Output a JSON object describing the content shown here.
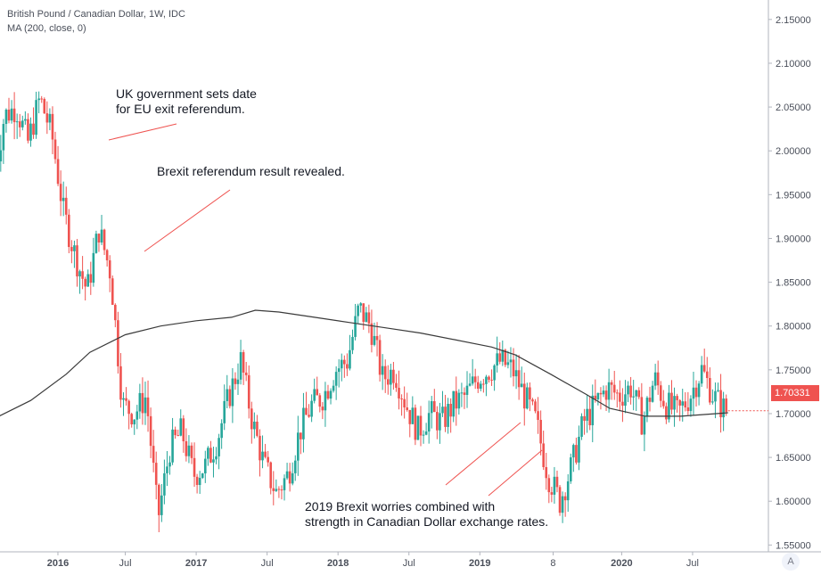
{
  "header": {
    "title": "British Pound / Canadian Dollar, 1W, IDC",
    "indicator": "MA (200, close, 0)"
  },
  "annotations": [
    {
      "text": "UK government sets date\nfor EU exit referendum."
    },
    {
      "text": "Brexit referendum result revealed."
    },
    {
      "text": "2019 Brexit worries combined with\nstrength in Canadian Dollar exchange rates."
    }
  ],
  "last_price": "1.70331",
  "auto_button": "A",
  "colors": {
    "up": "#26a69a",
    "down": "#ef5350",
    "ma": "#3a3a3a",
    "annotation_line": "#ef5350",
    "axis_text": "#4a4f5a"
  },
  "chart_data": {
    "type": "candlestick",
    "title": "British Pound / Canadian Dollar, 1W, IDC",
    "ylim": [
      1.53,
      2.16
    ],
    "y_ticks": [
      "1.55000",
      "1.60000",
      "1.65000",
      "1.70000",
      "1.75000",
      "1.80000",
      "1.85000",
      "1.90000",
      "1.95000",
      "2.00000",
      "2.05000",
      "2.10000",
      "2.15000"
    ],
    "x_ticks": [
      "2016",
      "Jul",
      "2017",
      "Jul",
      "2018",
      "Jul",
      "2019",
      "8",
      "2020",
      "Jul"
    ],
    "price_path": [
      [
        "2015-08",
        1.96
      ],
      [
        "2015-09",
        2.04
      ],
      [
        "2015-10",
        2.05
      ],
      [
        "2015-11",
        2.01
      ],
      [
        "2015-12",
        2.06
      ],
      [
        "2016-01",
        2.02
      ],
      [
        "2016-02",
        1.93
      ],
      [
        "2016-03",
        1.88
      ],
      [
        "2016-04",
        1.84
      ],
      [
        "2016-05",
        1.91
      ],
      [
        "2016-06",
        1.86
      ],
      [
        "2016-07",
        1.71
      ],
      [
        "2016-08",
        1.7
      ],
      [
        "2016-09",
        1.72
      ],
      [
        "2016-10",
        1.58
      ],
      [
        "2016-11",
        1.66
      ],
      [
        "2016-12",
        1.68
      ],
      [
        "2017-01",
        1.63
      ],
      [
        "2017-02",
        1.64
      ],
      [
        "2017-03",
        1.67
      ],
      [
        "2017-04",
        1.72
      ],
      [
        "2017-05",
        1.76
      ],
      [
        "2017-06",
        1.69
      ],
      [
        "2017-07",
        1.64
      ],
      [
        "2017-08",
        1.61
      ],
      [
        "2017-09",
        1.63
      ],
      [
        "2017-10",
        1.68
      ],
      [
        "2017-11",
        1.71
      ],
      [
        "2017-12",
        1.72
      ],
      [
        "2018-01",
        1.75
      ],
      [
        "2018-02",
        1.76
      ],
      [
        "2018-03",
        1.82
      ],
      [
        "2018-04",
        1.8
      ],
      [
        "2018-05",
        1.74
      ],
      [
        "2018-06",
        1.75
      ],
      [
        "2018-07",
        1.71
      ],
      [
        "2018-08",
        1.68
      ],
      [
        "2018-09",
        1.7
      ],
      [
        "2018-10",
        1.69
      ],
      [
        "2018-11",
        1.71
      ],
      [
        "2018-12",
        1.72
      ],
      [
        "2019-01",
        1.74
      ],
      [
        "2019-02",
        1.75
      ],
      [
        "2019-03",
        1.76
      ],
      [
        "2019-04",
        1.75
      ],
      [
        "2019-05",
        1.72
      ],
      [
        "2019-06",
        1.69
      ],
      [
        "2019-07",
        1.63
      ],
      [
        "2019-08",
        1.6
      ],
      [
        "2019-09",
        1.64
      ],
      [
        "2019-10",
        1.69
      ],
      [
        "2019-11",
        1.71
      ],
      [
        "2019-12",
        1.73
      ],
      [
        "2020-01",
        1.72
      ],
      [
        "2020-02",
        1.73
      ],
      [
        "2020-03",
        1.69
      ],
      [
        "2020-04",
        1.74
      ],
      [
        "2020-05",
        1.71
      ],
      [
        "2020-06",
        1.7
      ],
      [
        "2020-07",
        1.72
      ],
      [
        "2020-08",
        1.75
      ],
      [
        "2020-09",
        1.72
      ],
      [
        "2020-10",
        1.70331
      ]
    ],
    "series": [
      {
        "name": "MA (200, close, 0)",
        "values": [
          [
            "2015-08",
            1.695
          ],
          [
            "2015-11",
            1.715
          ],
          [
            "2016-02",
            1.745
          ],
          [
            "2016-04",
            1.77
          ],
          [
            "2016-07",
            1.79
          ],
          [
            "2016-10",
            1.8
          ],
          [
            "2017-01",
            1.806
          ],
          [
            "2017-04",
            1.81
          ],
          [
            "2017-06",
            1.818
          ],
          [
            "2017-08",
            1.816
          ],
          [
            "2017-11",
            1.81
          ],
          [
            "2018-02",
            1.804
          ],
          [
            "2018-05",
            1.798
          ],
          [
            "2018-08",
            1.792
          ],
          [
            "2018-11",
            1.784
          ],
          [
            "2019-02",
            1.776
          ],
          [
            "2019-04",
            1.767
          ],
          [
            "2019-07",
            1.745
          ],
          [
            "2019-10",
            1.722
          ],
          [
            "2019-12",
            1.706
          ],
          [
            "2020-03",
            1.697
          ],
          [
            "2020-06",
            1.697
          ],
          [
            "2020-09",
            1.7
          ],
          [
            "2020-10",
            1.701
          ]
        ]
      }
    ]
  }
}
